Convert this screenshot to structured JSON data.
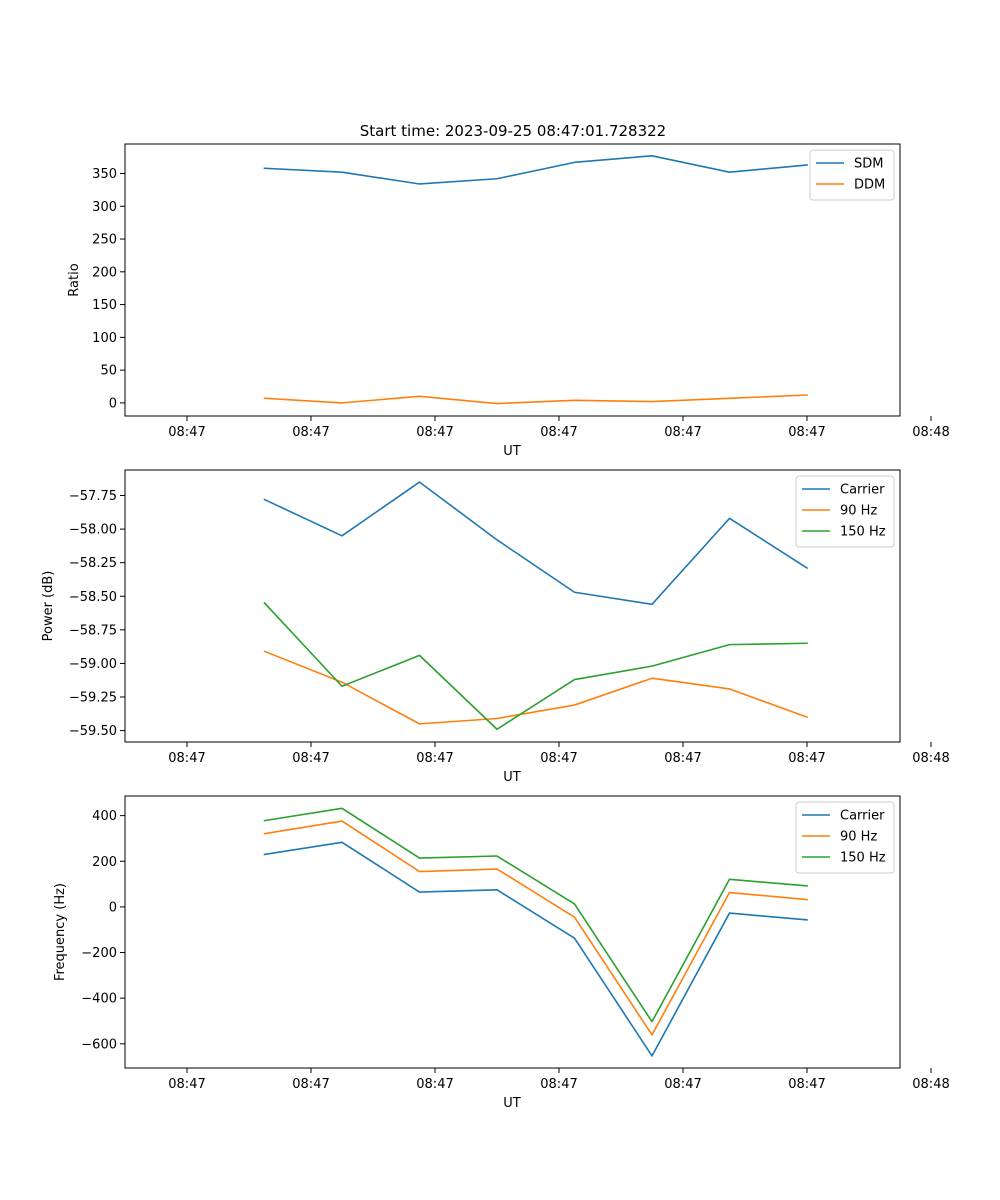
{
  "figure": {
    "title": "Start time: 2023-09-25 08:47:01.728322"
  },
  "colors": {
    "blue": "#1f77b4",
    "orange": "#ff7f0e",
    "green": "#2ca02c",
    "axis": "#000000",
    "legend_border": "#cccccc"
  },
  "chart_data": [
    {
      "type": "line",
      "title": "Start time: 2023-09-25 08:47:01.728322",
      "xlabel": "UT",
      "ylabel": "Ratio",
      "x": [
        0.5,
        1,
        1.5,
        2,
        2.5,
        3,
        3.5,
        4
      ],
      "xlim": [
        -0.4,
        4.6
      ],
      "xticks": [
        0,
        0.8,
        1.6,
        2.4,
        3.2,
        4.0,
        4.8
      ],
      "xtick_labels": [
        "08:47",
        "08:47",
        "08:47",
        "08:47",
        "08:47",
        "08:47",
        "08:48"
      ],
      "ylim": [
        -20,
        395
      ],
      "yticks": [
        0,
        50,
        100,
        150,
        200,
        250,
        300,
        350
      ],
      "ytick_labels": [
        "0",
        "50",
        "100",
        "150",
        "200",
        "250",
        "300",
        "350"
      ],
      "grid": false,
      "legend_position": "top-right",
      "series": [
        {
          "name": "SDM",
          "color": "#1f77b4",
          "values": [
            358,
            352,
            334,
            342,
            367,
            377,
            352,
            363
          ]
        },
        {
          "name": "DDM",
          "color": "#ff7f0e",
          "values": [
            7,
            0,
            10,
            -1,
            4,
            2,
            7,
            12
          ]
        }
      ]
    },
    {
      "type": "line",
      "xlabel": "UT",
      "ylabel": "Power (dB)",
      "x": [
        0.5,
        1,
        1.5,
        2,
        2.5,
        3,
        3.5,
        4
      ],
      "xlim": [
        -0.4,
        4.6
      ],
      "xticks": [
        0,
        0.8,
        1.6,
        2.4,
        3.2,
        4.0,
        4.8
      ],
      "xtick_labels": [
        "08:47",
        "08:47",
        "08:47",
        "08:47",
        "08:47",
        "08:47",
        "08:48"
      ],
      "ylim": [
        -59.585,
        -57.56
      ],
      "yticks": [
        -59.5,
        -59.25,
        -59.0,
        -58.75,
        -58.5,
        -58.25,
        -58.0,
        -57.75
      ],
      "ytick_labels": [
        "−59.50",
        "−59.25",
        "−59.00",
        "−58.75",
        "−58.50",
        "−58.25",
        "−58.00",
        "−57.75"
      ],
      "grid": false,
      "legend_position": "top-right",
      "series": [
        {
          "name": "Carrier",
          "color": "#1f77b4",
          "values": [
            -57.78,
            -58.05,
            -57.65,
            -58.08,
            -58.47,
            -58.56,
            -57.92,
            -58.29
          ]
        },
        {
          "name": "90 Hz",
          "color": "#ff7f0e",
          "values": [
            -58.91,
            -59.14,
            -59.45,
            -59.41,
            -59.31,
            -59.11,
            -59.19,
            -59.4
          ]
        },
        {
          "name": "150 Hz",
          "color": "#2ca02c",
          "values": [
            -58.55,
            -59.17,
            -58.94,
            -59.49,
            -59.12,
            -59.02,
            -58.86,
            -58.85
          ]
        }
      ]
    },
    {
      "type": "line",
      "xlabel": "UT",
      "ylabel": "Frequency (Hz)",
      "x": [
        0.5,
        1,
        1.5,
        2,
        2.5,
        3,
        3.5,
        4
      ],
      "xlim": [
        -0.4,
        4.6
      ],
      "xticks": [
        0,
        0.8,
        1.6,
        2.4,
        3.2,
        4.0,
        4.8
      ],
      "xtick_labels": [
        "08:47",
        "08:47",
        "08:47",
        "08:47",
        "08:47",
        "08:47",
        "08:48"
      ],
      "ylim": [
        -706,
        486
      ],
      "yticks": [
        -600,
        -400,
        -200,
        0,
        200,
        400
      ],
      "ytick_labels": [
        "−600",
        "−400",
        "−200",
        "0",
        "200",
        "400"
      ],
      "grid": false,
      "legend_position": "top-right",
      "series": [
        {
          "name": "Carrier",
          "color": "#1f77b4",
          "values": [
            230,
            283,
            65,
            75,
            -137,
            -653,
            -27,
            -57
          ]
        },
        {
          "name": "90 Hz",
          "color": "#ff7f0e",
          "values": [
            321,
            376,
            155,
            166,
            -45,
            -561,
            63,
            32
          ]
        },
        {
          "name": "150 Hz",
          "color": "#2ca02c",
          "values": [
            378,
            432,
            214,
            223,
            13,
            -503,
            121,
            92
          ]
        }
      ]
    }
  ]
}
